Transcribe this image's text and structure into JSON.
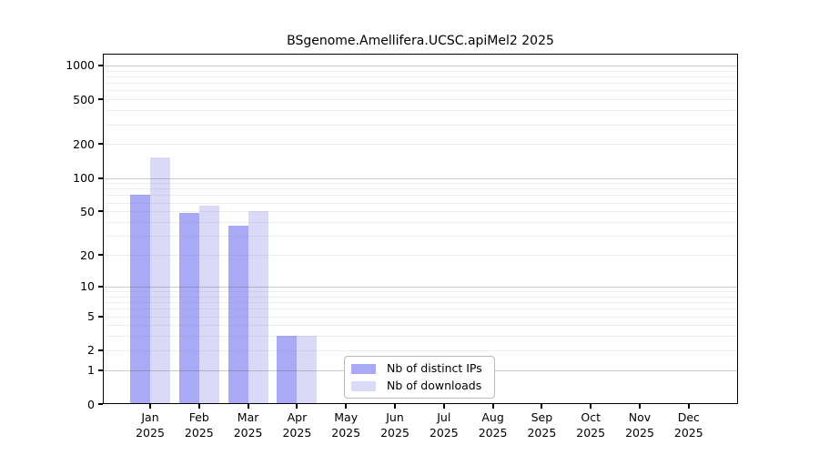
{
  "chart_data": {
    "type": "bar",
    "title": "BSgenome.Amellifera.UCSC.apiMel2 2025",
    "categories": [
      "Jan",
      "Feb",
      "Mar",
      "Apr",
      "May",
      "Jun",
      "Jul",
      "Aug",
      "Sep",
      "Oct",
      "Nov",
      "Dec"
    ],
    "x_year": "2025",
    "series": [
      {
        "name": "Nb of distinct IPs",
        "color": "#a9a9f5",
        "values": [
          70,
          48,
          37,
          3,
          0,
          0,
          0,
          0,
          0,
          0,
          0,
          0
        ]
      },
      {
        "name": "Nb of downloads",
        "color": "#dadaf8",
        "values": [
          152,
          56,
          50,
          3,
          0,
          0,
          0,
          0,
          0,
          0,
          0,
          0
        ]
      }
    ],
    "y_ticks": [
      0,
      1,
      2,
      5,
      10,
      20,
      50,
      100,
      200,
      500,
      1000
    ],
    "y_scale": "log10(1+y)",
    "ylim": [
      0,
      1250
    ],
    "grid": {
      "horizontal": true,
      "minor_log_lines": true
    },
    "legend_position": "inside-bottom-center",
    "colors": {
      "axis": "#000000",
      "major_grid": "#c8c8c8",
      "minor_grid": "#ededed",
      "background": "#ffffff"
    }
  }
}
